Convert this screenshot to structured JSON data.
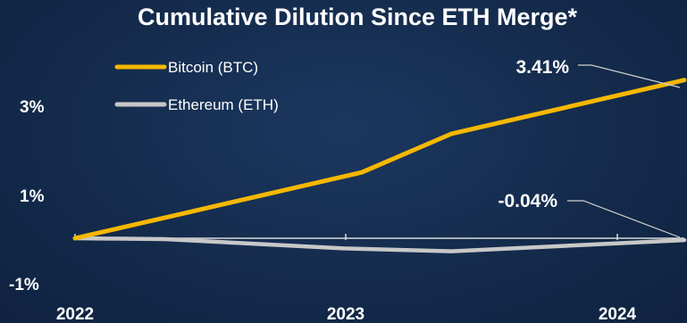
{
  "chart_data": {
    "type": "line",
    "title": "Cumulative Dilution Since ETH Merge*",
    "xlabel": "",
    "ylabel": "",
    "x_ticks": [
      "2022",
      "2023",
      "2024"
    ],
    "y_ticks": [
      "3%",
      "1%",
      "-1%"
    ],
    "ylim": [
      -1,
      3.5
    ],
    "series": [
      {
        "name": "Bitcoin (BTC)",
        "color": "#f5b800",
        "points": [
          [
            2022.7,
            0.0
          ],
          [
            2023.0,
            0.53
          ],
          [
            2023.5,
            1.42
          ],
          [
            2023.75,
            2.25
          ],
          [
            2024.4,
            3.41
          ]
        ]
      },
      {
        "name": "Ethereum (ETH)",
        "color": "#c8c8c8",
        "points": [
          [
            2022.7,
            0.0
          ],
          [
            2022.95,
            -0.02
          ],
          [
            2023.45,
            -0.22
          ],
          [
            2023.75,
            -0.28
          ],
          [
            2024.4,
            -0.04
          ]
        ]
      }
    ],
    "annotations": [
      {
        "text": "3.41%",
        "series": "Bitcoin (BTC)"
      },
      {
        "text": "-0.04%",
        "series": "Ethereum (ETH)"
      }
    ],
    "legend_position": "top-left",
    "grid": false
  }
}
